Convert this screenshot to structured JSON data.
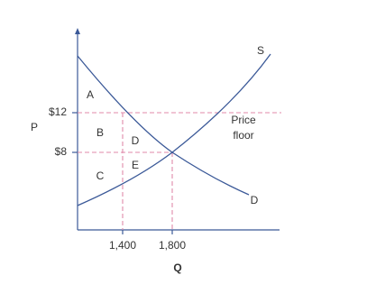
{
  "axes": {
    "y_label": "P",
    "x_label": "Q"
  },
  "y_ticks": [
    "$12",
    "$8"
  ],
  "x_ticks": [
    "1,400",
    "1,800"
  ],
  "regions": [
    "A",
    "B",
    "C",
    "D",
    "E"
  ],
  "curves": {
    "supply": "S",
    "demand": "D"
  },
  "annotation": {
    "line1": "Price",
    "line2": "floor"
  }
}
